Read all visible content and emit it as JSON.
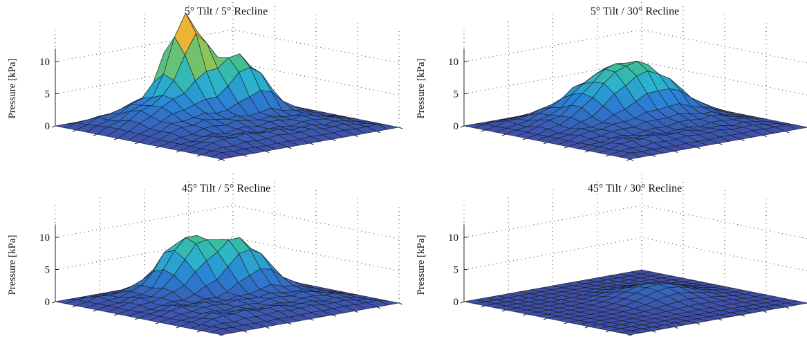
{
  "colors": {
    "low": "#3e4fa8",
    "mid1": "#2a8fd6",
    "mid2": "#2bbdbf",
    "mid3": "#7fc463",
    "high": "#e0b23a"
  },
  "chart_data": [
    {
      "type": "surface",
      "title": "5° Tilt / 5° Recline",
      "ylabel": "Pressure [kPa]",
      "zticks": [
        "0",
        "5",
        "10"
      ],
      "zlim": [
        0,
        12
      ],
      "grid": true,
      "peaks": [
        {
          "r": 4,
          "c": 8,
          "h": 12.8,
          "s": 1.2
        },
        {
          "r": 6,
          "c": 11,
          "h": 8.2,
          "s": 1.5
        },
        {
          "r": 5,
          "c": 6,
          "h": 3.5,
          "s": 2.5
        }
      ],
      "base": 1.3
    },
    {
      "type": "surface",
      "title": "5° Tilt / 30° Recline",
      "ylabel": "Pressure [kPa]",
      "zticks": [
        "0",
        "5",
        "10"
      ],
      "zlim": [
        0,
        12
      ],
      "grid": true,
      "peaks": [
        {
          "r": 5,
          "c": 8,
          "h": 5.6,
          "s": 2.2
        },
        {
          "r": 6,
          "c": 11,
          "h": 5.2,
          "s": 2.0
        }
      ],
      "base": 1.1
    },
    {
      "type": "surface",
      "title": "45° Tilt / 5° Recline",
      "ylabel": "Pressure [kPa]",
      "zticks": [
        "0",
        "5",
        "10"
      ],
      "zlim": [
        0,
        12
      ],
      "grid": true,
      "peaks": [
        {
          "r": 4,
          "c": 8,
          "h": 7.5,
          "s": 1.6
        },
        {
          "r": 6,
          "c": 11,
          "h": 7.0,
          "s": 1.6
        }
      ],
      "base": 1.2
    },
    {
      "type": "surface",
      "title": "45° Tilt / 30° Recline",
      "ylabel": "Pressure [kPa]",
      "zticks": [
        "0",
        "5",
        "10"
      ],
      "zlim": [
        0,
        12
      ],
      "grid": true,
      "peaks": [
        {
          "r": 8,
          "c": 10,
          "h": 2.2,
          "s": 2.2
        }
      ],
      "base": 0.0
    }
  ]
}
